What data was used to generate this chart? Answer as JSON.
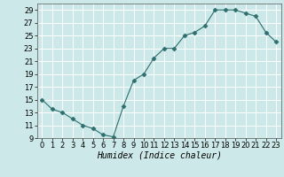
{
  "x": [
    0,
    1,
    2,
    3,
    4,
    5,
    6,
    7,
    8,
    9,
    10,
    11,
    12,
    13,
    14,
    15,
    16,
    17,
    18,
    19,
    20,
    21,
    22,
    23
  ],
  "y": [
    15,
    13.5,
    13,
    12,
    11,
    10.5,
    9.5,
    9.2,
    14,
    18,
    19,
    21.5,
    23,
    23,
    25,
    25.5,
    26.5,
    29,
    29,
    29,
    28.5,
    28,
    25.5,
    24
  ],
  "line_color": "#2d6e6e",
  "marker": "D",
  "marker_size": 2.5,
  "bg_color": "#cce8e8",
  "grid_color": "#ffffff",
  "xlabel": "Humidex (Indice chaleur)",
  "xlabel_style": "italic",
  "xlabel_fontsize": 7,
  "tick_fontsize": 6,
  "ylim": [
    9,
    30
  ],
  "xlim": [
    -0.5,
    23.5
  ],
  "yticks": [
    9,
    11,
    13,
    15,
    17,
    19,
    21,
    23,
    25,
    27,
    29
  ],
  "xticks": [
    0,
    1,
    2,
    3,
    4,
    5,
    6,
    7,
    8,
    9,
    10,
    11,
    12,
    13,
    14,
    15,
    16,
    17,
    18,
    19,
    20,
    21,
    22,
    23
  ]
}
